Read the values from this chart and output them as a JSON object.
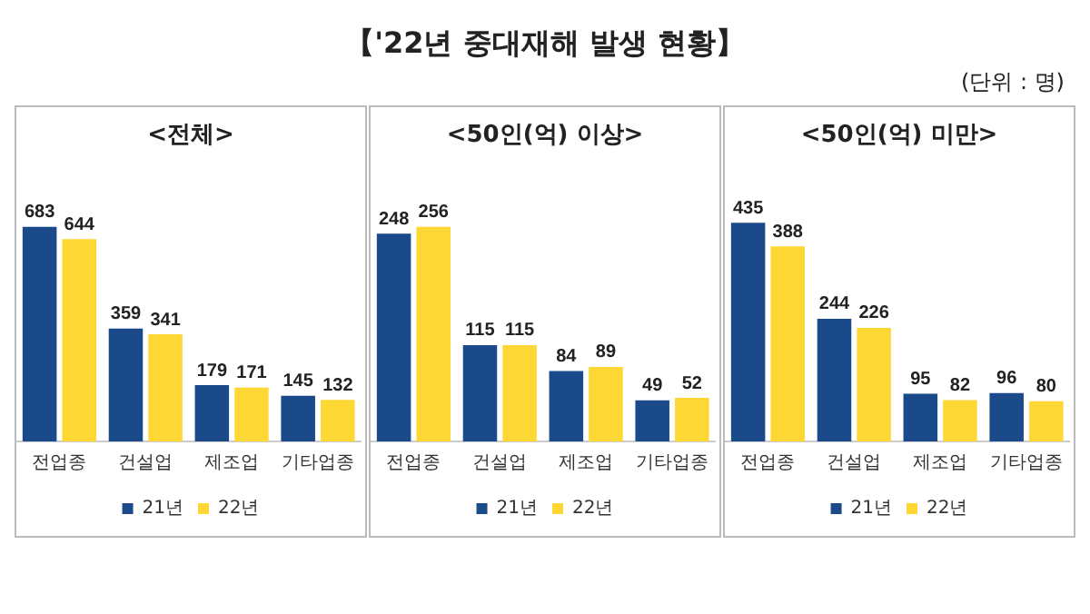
{
  "chart_data": [
    {
      "type": "other",
      "title": "【'22년 중대재해 발생 현황】",
      "annotations": [
        "(단위 : 명)"
      ]
    },
    {
      "type": "bar",
      "title": "<전체>",
      "categories": [
        "전업종",
        "건설업",
        "제조업",
        "기타업종"
      ],
      "series": [
        {
          "name": "21년",
          "color": "#1b4a8a",
          "values": [
            683,
            359,
            179,
            145
          ]
        },
        {
          "name": "22년",
          "color": "#fdd835",
          "values": [
            644,
            341,
            171,
            132
          ]
        }
      ],
      "data_labels": true,
      "legend": "bottom",
      "grid": false
    },
    {
      "type": "bar",
      "title": "<50인(억) 이상>",
      "categories": [
        "전업종",
        "건설업",
        "제조업",
        "기타업종"
      ],
      "series": [
        {
          "name": "21년",
          "color": "#1b4a8a",
          "values": [
            248,
            115,
            84,
            49
          ]
        },
        {
          "name": "22년",
          "color": "#fdd835",
          "values": [
            256,
            115,
            89,
            52
          ]
        }
      ],
      "data_labels": true,
      "legend": "bottom",
      "grid": false
    },
    {
      "type": "bar",
      "title": "<50인(억) 미만>",
      "categories": [
        "전업종",
        "건설업",
        "제조업",
        "기타업종"
      ],
      "series": [
        {
          "name": "21년",
          "color": "#1b4a8a",
          "values": [
            435,
            244,
            95,
            96
          ]
        },
        {
          "name": "22년",
          "color": "#fdd835",
          "values": [
            388,
            226,
            82,
            80
          ]
        }
      ],
      "data_labels": true,
      "legend": "bottom",
      "grid": false
    }
  ]
}
